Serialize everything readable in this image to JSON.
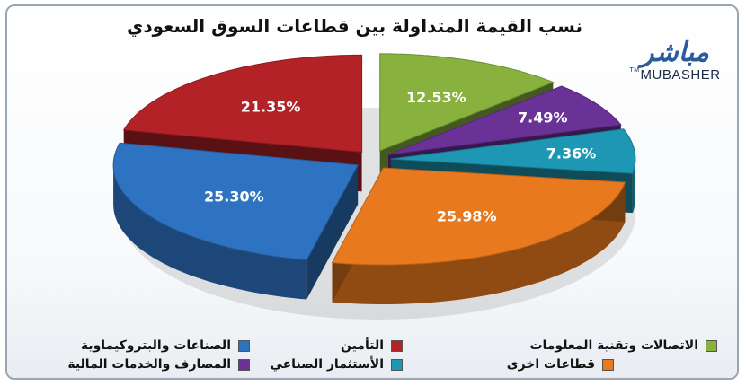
{
  "title": "نسب القيمة المتداولة بين قطاعات السوق السعودي",
  "logo": {
    "ar": "مباشر",
    "en": "MUBASHER",
    "tm": "TM"
  },
  "colors": {
    "industries": "#2e73c2",
    "insurance": "#b22227",
    "telecom": "#88b13d",
    "banks": "#6a3197",
    "investment": "#1d97b4",
    "others": "#e8791e"
  },
  "chart_data": {
    "type": "pie",
    "title": "نسب القيمة المتداولة بين قطاعات السوق السعودي",
    "slices": [
      {
        "key": "telecom",
        "label": "الاتصالات وتقنية المعلومات",
        "value": 12.53,
        "value_label": "12.53%"
      },
      {
        "key": "banks",
        "label": "المصارف والخدمات المالية",
        "value": 7.49,
        "value_label": "7.49%"
      },
      {
        "key": "investment",
        "label": "الأستثمار الصناعي",
        "value": 7.36,
        "value_label": "7.36%"
      },
      {
        "key": "others",
        "label": "قطاعات اخرى",
        "value": 25.98,
        "value_label": "25.98%"
      },
      {
        "key": "industries",
        "label": "الصناعات والبتروكيماوية",
        "value": 25.3,
        "value_label": "25.30%"
      },
      {
        "key": "insurance",
        "label": "التأمين",
        "value": 21.35,
        "value_label": "21.35%"
      }
    ],
    "legend_position": "bottom",
    "exploded": true,
    "three_d": true
  }
}
